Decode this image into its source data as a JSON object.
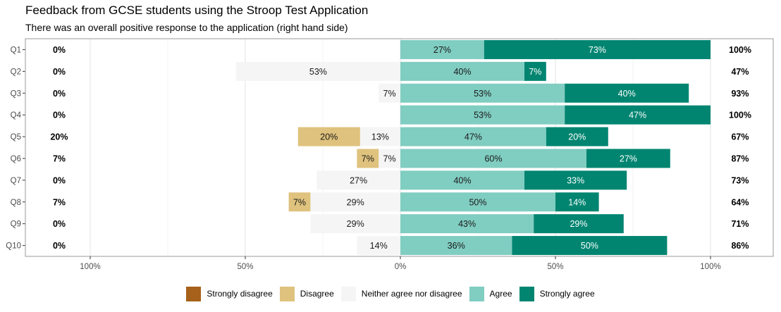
{
  "chart_data": {
    "type": "bar",
    "orientation": "horizontal",
    "stacked": "diverging",
    "title": "Feedback from GCSE students using the Stroop Test Application",
    "subtitle": "There was an overall positive response to the application (right hand side)",
    "xlabel": "",
    "ylabel": "",
    "xlim": [
      -100,
      100
    ],
    "x_ticks": [
      {
        "value": -100,
        "label": "100%"
      },
      {
        "value": -50,
        "label": "50%"
      },
      {
        "value": 0,
        "label": "0%"
      },
      {
        "value": 50,
        "label": "50%"
      },
      {
        "value": 100,
        "label": "100%"
      }
    ],
    "grid": true,
    "legend_position": "bottom",
    "categories": [
      "Q1",
      "Q2",
      "Q3",
      "Q4",
      "Q5",
      "Q6",
      "Q7",
      "Q8",
      "Q9",
      "Q10"
    ],
    "series": [
      {
        "name": "Strongly disagree",
        "color": "#A6611A",
        "values": [
          0,
          0,
          0,
          0,
          0,
          0,
          0,
          0,
          0,
          0
        ]
      },
      {
        "name": "Disagree",
        "color": "#DFC27D",
        "values": [
          0,
          0,
          0,
          0,
          20,
          7,
          0,
          7,
          0,
          0
        ]
      },
      {
        "name": "Neither agree nor disagree",
        "color": "#F5F5F5",
        "values": [
          0,
          53,
          7,
          0,
          13,
          7,
          27,
          29,
          29,
          14
        ]
      },
      {
        "name": "Agree",
        "color": "#80CDC1",
        "values": [
          27,
          40,
          53,
          53,
          47,
          60,
          40,
          50,
          43,
          36
        ]
      },
      {
        "name": "Strongly agree",
        "color": "#018571",
        "values": [
          73,
          7,
          40,
          47,
          20,
          27,
          33,
          14,
          29,
          50
        ]
      }
    ],
    "left_totals": [
      "0%",
      "0%",
      "0%",
      "0%",
      "20%",
      "7%",
      "0%",
      "7%",
      "0%",
      "0%"
    ],
    "right_totals": [
      "100%",
      "47%",
      "93%",
      "100%",
      "67%",
      "87%",
      "73%",
      "64%",
      "71%",
      "86%"
    ]
  }
}
